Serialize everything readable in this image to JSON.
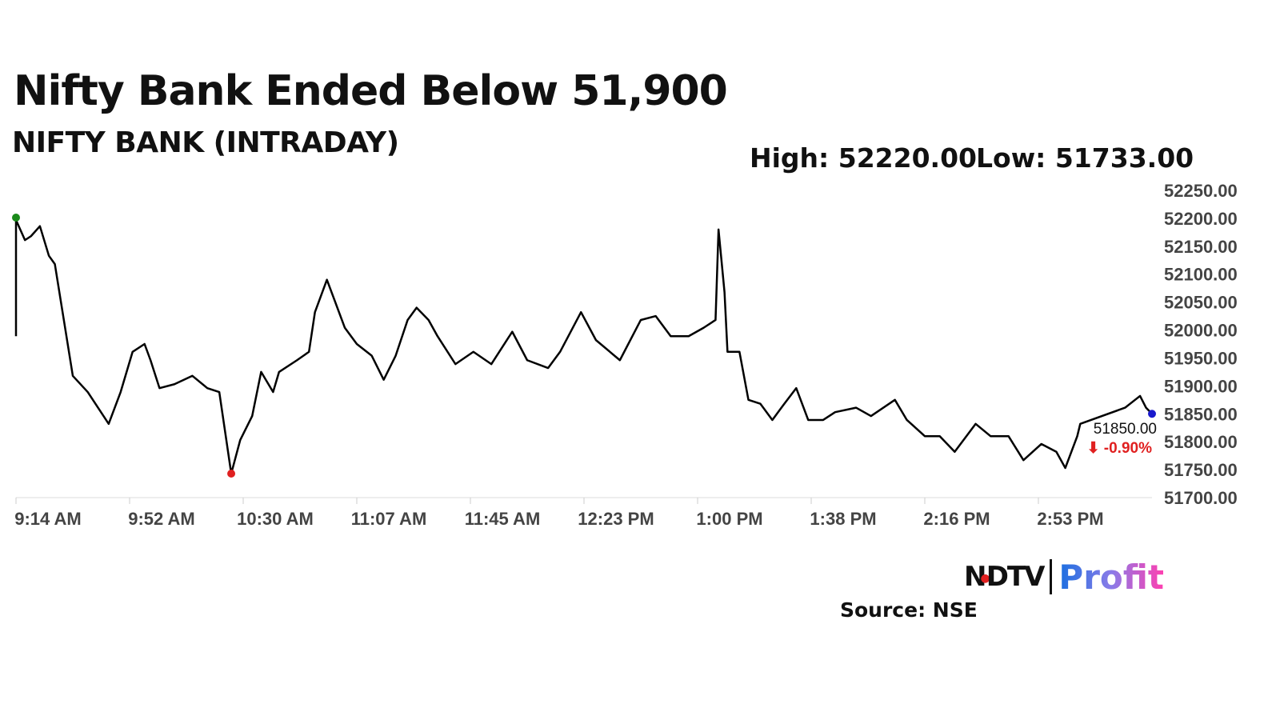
{
  "chart_data": {
    "type": "line",
    "title": "Nifty Bank Ended Below 51,900",
    "subtitle": "NIFTY BANK (INTRADAY)",
    "high_label": "High: 52220.00",
    "low_label": "Low: 51733.00",
    "last_value_label": "51850.00",
    "change_label": "-0.90%",
    "x_ticks": [
      "9:14 AM",
      "9:52 AM",
      "10:30 AM",
      "11:07 AM",
      "11:45 AM",
      "12:23 PM",
      "1:00 PM",
      "1:38 PM",
      "2:16 PM",
      "2:53 PM"
    ],
    "x_range": [
      "9:14",
      "15:34"
    ],
    "y_ticks": [
      "51700.00",
      "51750.00",
      "51800.00",
      "51850.00",
      "51900.00",
      "51950.00",
      "52000.00",
      "52050.00",
      "52100.00",
      "52150.00",
      "52200.00",
      "52250.00"
    ],
    "ylim": [
      51700,
      52250
    ],
    "grid": false,
    "colors": {
      "line": "#000000",
      "start_marker": "#1a8a1a",
      "low_marker": "#e02020",
      "end_marker": "#1a1acc",
      "change": "#e02020"
    },
    "series": [
      {
        "x": [
          "9:14",
          "9:14",
          "9:17",
          "9:19",
          "9:22",
          "9:25",
          "9:27",
          "9:30",
          "9:33",
          "9:38",
          "9:45",
          "9:49",
          "9:53",
          "9:57",
          "9:59",
          "10:02",
          "10:07",
          "10:13",
          "10:18",
          "10:22",
          "10:26",
          "10:29",
          "10:33",
          "10:36",
          "10:40",
          "10:42",
          "10:48",
          "10:52",
          "10:54",
          "10:58",
          "11:01",
          "11:04",
          "11:08",
          "11:13",
          "11:17",
          "11:21",
          "11:25",
          "11:28",
          "11:32",
          "11:35",
          "11:41",
          "11:47",
          "11:53",
          "12:00",
          "12:05",
          "12:12",
          "12:16",
          "12:23",
          "12:28",
          "12:36",
          "12:43",
          "12:48",
          "12:53",
          "12:59",
          "13:04",
          "13:08",
          "13:09",
          "13:11",
          "13:12",
          "13:16",
          "13:19",
          "13:23",
          "13:27",
          "13:31",
          "13:35",
          "13:39",
          "13:44",
          "13:48",
          "13:55",
          "14:00",
          "14:08",
          "14:12",
          "14:18",
          "14:23",
          "14:28",
          "14:35",
          "14:40",
          "14:46",
          "14:51",
          "14:57",
          "15:02",
          "15:05",
          "15:09",
          "15:10",
          "15:25",
          "15:30",
          "15:32",
          "15:34"
        ],
        "y": [
          51989,
          52197,
          52161,
          52168,
          52186,
          52133,
          52118,
          52018,
          51918,
          51889,
          51832,
          51889,
          51961,
          51975,
          51946,
          51896,
          51903,
          51918,
          51896,
          51889,
          51743,
          51803,
          51846,
          51925,
          51889,
          51925,
          51946,
          51961,
          52032,
          52090,
          52047,
          52004,
          51975,
          51954,
          51911,
          51954,
          52018,
          52040,
          52018,
          51989,
          51939,
          51961,
          51939,
          51997,
          51946,
          51932,
          51961,
          52032,
          51982,
          51946,
          52018,
          52025,
          51989,
          51989,
          52004,
          52018,
          52180,
          52068,
          51961,
          51961,
          51875,
          51868,
          51839,
          51868,
          51896,
          51839,
          51839,
          51853,
          51861,
          51846,
          51875,
          51839,
          51810,
          51810,
          51782,
          51832,
          51810,
          51810,
          51767,
          51796,
          51782,
          51753,
          51810,
          51832,
          51861,
          51882,
          51861,
          51850
        ]
      }
    ]
  },
  "source": "Source: NSE",
  "logo": {
    "ndtv": "NDTV",
    "profit": "Profit"
  }
}
